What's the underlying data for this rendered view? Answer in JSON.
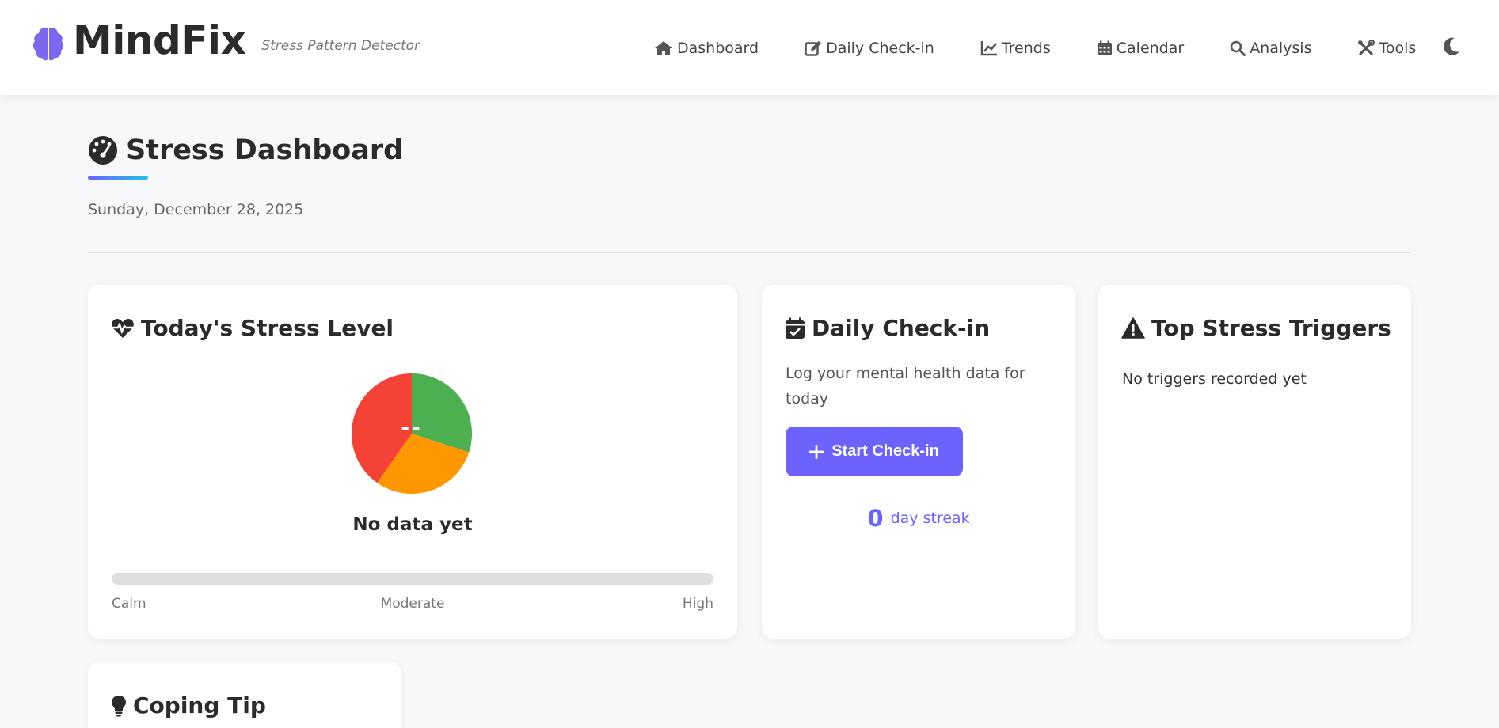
{
  "header": {
    "brand_name": "MindFix",
    "brand_subtitle": "Stress Pattern Detector",
    "nav": [
      {
        "label": "Dashboard",
        "icon": "home-icon"
      },
      {
        "label": "Daily Check-in",
        "icon": "edit-icon"
      },
      {
        "label": "Trends",
        "icon": "chart-line-icon"
      },
      {
        "label": "Calendar",
        "icon": "calendar-icon"
      },
      {
        "label": "Analysis",
        "icon": "search-icon"
      },
      {
        "label": "Tools",
        "icon": "tools-icon"
      }
    ],
    "theme_toggle_icon": "moon-icon"
  },
  "page": {
    "title": "Stress Dashboard",
    "title_icon": "gauge-icon",
    "date": "Sunday, December 28, 2025"
  },
  "stress_card": {
    "title": "Today's Stress Level",
    "icon": "heartbeat-icon",
    "gauge_value": "--",
    "gauge_colors": {
      "calm": "#4caf50",
      "moderate": "#ff9800",
      "high": "#f44336"
    },
    "status": "No data yet",
    "level_fraction": 0,
    "scale": {
      "low": "Calm",
      "mid": "Moderate",
      "high": "High"
    }
  },
  "checkin_card": {
    "title": "Daily Check-in",
    "icon": "calendar-check-icon",
    "description": "Log your mental health data for today",
    "button_label": "Start Check-in",
    "streak_count": "0",
    "streak_label": "day streak"
  },
  "triggers_card": {
    "title": "Top Stress Triggers",
    "icon": "warning-icon",
    "empty_text": "No triggers recorded yet"
  },
  "tip_card": {
    "title": "Coping Tip",
    "icon": "lightbulb-icon"
  },
  "colors": {
    "accent": "#6c63ff",
    "accent_secondary": "#22c3e6",
    "background": "#f7f8fa"
  }
}
